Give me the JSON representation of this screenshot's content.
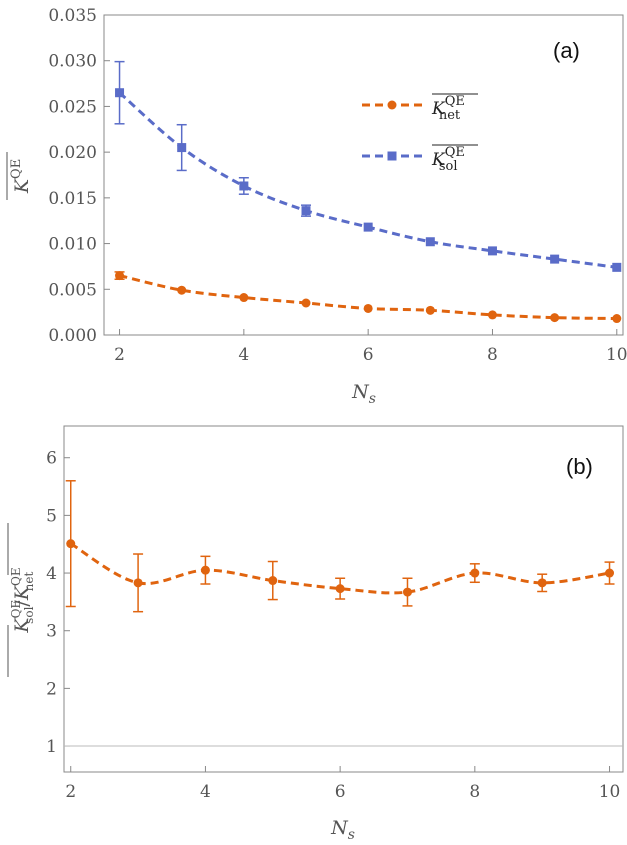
{
  "chart_data": [
    {
      "type": "line",
      "panel_label": "(a)",
      "xlabel_base": "N",
      "xlabel_sub": "s",
      "ylabel_base": "K",
      "ylabel_sup": "QE",
      "xlim": [
        1.75,
        10.1
      ],
      "ylim": [
        0,
        0.035
      ],
      "x_ticks": [
        2,
        4,
        6,
        8,
        10
      ],
      "y_ticks": [
        "0.000",
        "0.005",
        "0.010",
        "0.015",
        "0.020",
        "0.025",
        "0.030",
        "0.035"
      ],
      "legend_position": "top-right",
      "series": [
        {
          "name": "K_net",
          "legend_base": "K",
          "legend_sup": "QE",
          "legend_sub": "net",
          "marker": "circle",
          "color": "#e0640f",
          "x": [
            2,
            3,
            4,
            5,
            6,
            7,
            8,
            9,
            10
          ],
          "y": [
            0.0065,
            0.0049,
            0.0041,
            0.0035,
            0.0029,
            0.0027,
            0.0022,
            0.0019,
            0.0018
          ],
          "err": [
            0.0004,
            0.0002,
            0.0001,
            0.0001,
            0.0001,
            0.0001,
            0.0001,
            0.0001,
            0.0001
          ]
        },
        {
          "name": "K_sol",
          "legend_base": "K",
          "legend_sup": "QE",
          "legend_sub": "sol",
          "marker": "square",
          "color": "#5a6cc8",
          "x": [
            2,
            3,
            4,
            5,
            6,
            7,
            8,
            9,
            10
          ],
          "y": [
            0.0265,
            0.0205,
            0.0163,
            0.0136,
            0.0118,
            0.0102,
            0.0092,
            0.0083,
            0.0074
          ],
          "err": [
            0.0034,
            0.0025,
            0.0009,
            0.0006,
            0.0002,
            0.0002,
            0.0002,
            0.0002,
            0.0002
          ]
        }
      ]
    },
    {
      "type": "line",
      "panel_label": "(b)",
      "xlabel_base": "N",
      "xlabel_sub": "s",
      "ylabel_num_base": "K",
      "ylabel_num_sup": "QE",
      "ylabel_num_sub": "sol",
      "ylabel_sep": "/",
      "ylabel_den_base": "K",
      "ylabel_den_sup": "QE",
      "ylabel_den_sub": "net",
      "xlim": [
        1.9,
        10.2
      ],
      "ylim": [
        0.55,
        6.55
      ],
      "x_ticks": [
        2,
        4,
        6,
        8,
        10
      ],
      "y_ticks": [
        1,
        2,
        3,
        4,
        5,
        6
      ],
      "reference_line": 1,
      "series": [
        {
          "name": "ratio",
          "marker": "circle",
          "color": "#e0640f",
          "x": [
            2,
            3,
            4,
            5,
            6,
            7,
            8,
            9,
            10
          ],
          "y": [
            4.51,
            3.83,
            4.05,
            3.87,
            3.73,
            3.67,
            4.0,
            3.83,
            4.0
          ],
          "err": [
            1.09,
            0.5,
            0.24,
            0.33,
            0.18,
            0.24,
            0.16,
            0.15,
            0.19
          ]
        }
      ]
    }
  ]
}
